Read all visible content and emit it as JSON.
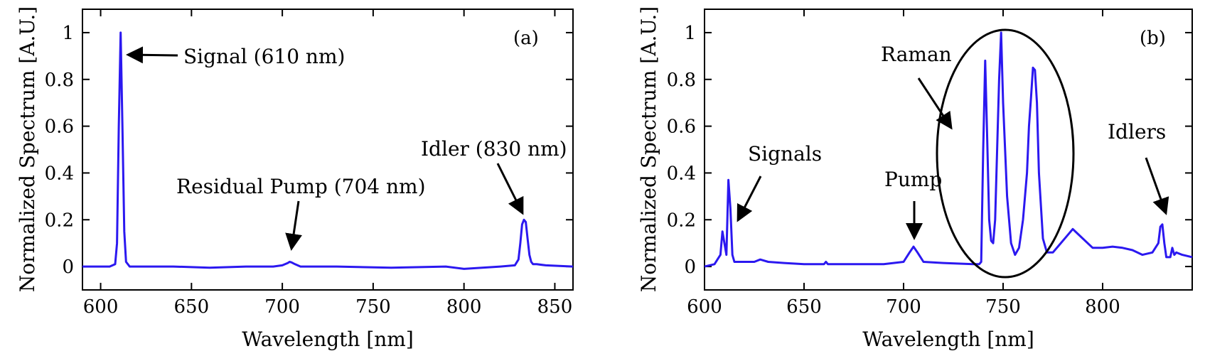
{
  "chart_data": [
    {
      "id": "a",
      "type": "line",
      "panel_label": "(a)",
      "xlabel": "Wavelength [nm]",
      "ylabel": "Normalized Spectrum [A.U.]",
      "xlim": [
        590,
        860
      ],
      "ylim": [
        -0.1,
        1.1
      ],
      "xticks": [
        600,
        650,
        700,
        750,
        800,
        850
      ],
      "yticks": [
        0,
        0.2,
        0.4,
        0.6,
        0.8,
        1
      ],
      "xtick_labels": [
        "600",
        "650",
        "700",
        "750",
        "800",
        "850"
      ],
      "ytick_labels": [
        "0",
        "0.2",
        "0.4",
        "0.6",
        "0.8",
        "1"
      ],
      "series": [
        {
          "name": "spectrum",
          "color": "#2b18f0",
          "x": [
            590,
            600,
            605,
            608,
            609,
            610,
            611,
            612,
            613,
            614,
            616,
            620,
            640,
            660,
            680,
            695,
            700,
            703,
            704,
            705,
            707,
            710,
            730,
            760,
            790,
            800,
            820,
            828,
            830,
            831,
            832,
            833,
            834,
            835,
            836,
            837,
            838,
            840,
            845,
            860
          ],
          "y": [
            0.0,
            0.0,
            0.0,
            0.01,
            0.1,
            0.6,
            1.0,
            0.6,
            0.15,
            0.02,
            0.0,
            0.0,
            0.0,
            -0.005,
            0.0,
            0.0,
            0.005,
            0.015,
            0.02,
            0.018,
            0.01,
            0.0,
            0.0,
            -0.005,
            0.0,
            -0.01,
            0.0,
            0.005,
            0.03,
            0.1,
            0.18,
            0.2,
            0.19,
            0.12,
            0.05,
            0.02,
            0.01,
            0.01,
            0.005,
            0.0
          ]
        }
      ],
      "annotations": [
        {
          "text": "Signal (610 nm)",
          "target": [
            612,
            0.94
          ]
        },
        {
          "text": "Residual Pump (704 nm)",
          "target": [
            704,
            0.07
          ]
        },
        {
          "text": "Idler (830 nm)",
          "target": [
            834,
            0.22
          ]
        }
      ]
    },
    {
      "id": "b",
      "type": "line",
      "panel_label": "(b)",
      "xlabel": "Wavelength [nm]",
      "ylabel": "Normalized Spectrum [A.U.]",
      "xlim": [
        600,
        845
      ],
      "ylim": [
        -0.1,
        1.1
      ],
      "xticks": [
        600,
        650,
        700,
        750,
        800
      ],
      "yticks": [
        0,
        0.2,
        0.4,
        0.6,
        0.8,
        1
      ],
      "xtick_labels": [
        "600",
        "650",
        "700",
        "750",
        "800"
      ],
      "ytick_labels": [
        "0",
        "0.2",
        "0.4",
        "0.6",
        "0.8",
        "1"
      ],
      "series": [
        {
          "name": "spectrum",
          "color": "#2b18f0",
          "x": [
            600,
            605,
            608,
            609,
            610,
            611,
            612,
            613,
            614,
            615,
            616,
            620,
            625,
            628,
            632,
            640,
            650,
            660,
            661,
            662,
            670,
            690,
            700,
            703,
            705,
            707,
            710,
            720,
            735,
            738,
            739,
            740,
            741,
            742,
            743,
            744,
            745,
            746,
            747,
            748,
            749,
            750,
            752,
            754,
            756,
            758,
            760,
            762,
            763,
            764,
            765,
            766,
            767,
            768,
            770,
            772,
            775,
            778,
            782,
            785,
            790,
            795,
            800,
            805,
            810,
            815,
            820,
            825,
            828,
            829,
            830,
            831,
            832,
            834,
            835,
            836,
            837,
            840,
            845
          ],
          "y": [
            0.0,
            0.01,
            0.05,
            0.15,
            0.1,
            0.05,
            0.37,
            0.25,
            0.05,
            0.02,
            0.02,
            0.02,
            0.02,
            0.03,
            0.02,
            0.015,
            0.01,
            0.01,
            0.02,
            0.01,
            0.01,
            0.01,
            0.02,
            0.06,
            0.085,
            0.06,
            0.02,
            0.015,
            0.01,
            0.01,
            0.02,
            0.5,
            0.88,
            0.55,
            0.2,
            0.11,
            0.1,
            0.2,
            0.5,
            0.8,
            1.0,
            0.7,
            0.3,
            0.1,
            0.05,
            0.08,
            0.2,
            0.4,
            0.6,
            0.72,
            0.85,
            0.84,
            0.7,
            0.4,
            0.12,
            0.06,
            0.06,
            0.09,
            0.13,
            0.16,
            0.12,
            0.08,
            0.08,
            0.085,
            0.08,
            0.07,
            0.05,
            0.06,
            0.1,
            0.17,
            0.18,
            0.1,
            0.04,
            0.04,
            0.08,
            0.05,
            0.06,
            0.05,
            0.04
          ]
        }
      ],
      "annotations": [
        {
          "text": "Signals",
          "target": [
            614,
            0.19
          ]
        },
        {
          "text": "Pump",
          "target": [
            705,
            0.11
          ]
        },
        {
          "text": "Raman",
          "target": [
            726,
            0.6
          ]
        },
        {
          "text": "Idlers",
          "target": [
            830,
            0.21
          ]
        }
      ],
      "highlight_ellipse": {
        "center": [
          762,
          0.47
        ],
        "radius": [
          34,
          0.58
        ],
        "label": "Raman"
      }
    }
  ]
}
